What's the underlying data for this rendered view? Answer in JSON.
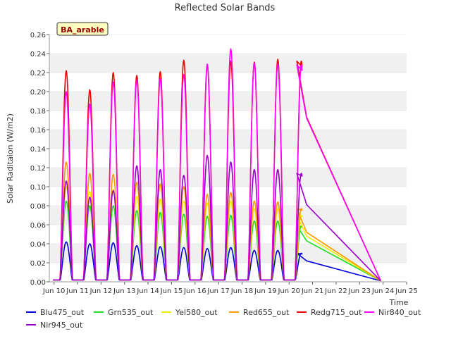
{
  "chart_data": {
    "type": "line",
    "title": "Reflected Solar Bands",
    "xlabel": "Time",
    "ylabel": "Solar Raditaion (W/m2)",
    "annotation": "BA_arable",
    "xlim": [
      9.8,
      25.0
    ],
    "ylim": [
      0.0,
      0.26
    ],
    "grid": true,
    "grid_style": "alternating horizontal bands",
    "legend_position": "bottom",
    "x_ticks": [
      {
        "value": 10,
        "label": "Jun 10"
      },
      {
        "value": 11,
        "label": "Jun 11"
      },
      {
        "value": 12,
        "label": "Jun 12"
      },
      {
        "value": 13,
        "label": "Jun 13"
      },
      {
        "value": 14,
        "label": "Jun 14"
      },
      {
        "value": 15,
        "label": "Jun 15"
      },
      {
        "value": 16,
        "label": "Jun 16"
      },
      {
        "value": 17,
        "label": "Jun 17"
      },
      {
        "value": 18,
        "label": "Jun 18"
      },
      {
        "value": 19,
        "label": "Jun 19"
      },
      {
        "value": 20,
        "label": "Jun 20"
      },
      {
        "value": 21,
        "label": "Jun 21"
      },
      {
        "value": 22,
        "label": "Jun 22"
      },
      {
        "value": 23,
        "label": "Jun 23"
      },
      {
        "value": 24,
        "label": "Jun 24"
      },
      {
        "value": 25,
        "label": "Jun 25"
      }
    ],
    "y_ticks": [
      {
        "value": 0.0,
        "label": "0.00"
      },
      {
        "value": 0.02,
        "label": "0.02"
      },
      {
        "value": 0.04,
        "label": "0.04"
      },
      {
        "value": 0.06,
        "label": "0.06"
      },
      {
        "value": 0.08,
        "label": "0.08"
      },
      {
        "value": 0.1,
        "label": "0.10"
      },
      {
        "value": 0.12,
        "label": "0.12"
      },
      {
        "value": 0.14,
        "label": "0.14"
      },
      {
        "value": 0.16,
        "label": "0.16"
      },
      {
        "value": 0.18,
        "label": "0.18"
      },
      {
        "value": 0.2,
        "label": "0.20"
      },
      {
        "value": 0.22,
        "label": "0.22"
      },
      {
        "value": 0.24,
        "label": "0.24"
      },
      {
        "value": 0.26,
        "label": "0.26"
      }
    ],
    "day_profile": {
      "start_day": 10,
      "days": 11,
      "sunrise_fraction": 0.25,
      "sunset_fraction": 0.79,
      "night_value": 0.002
    },
    "tail": {
      "x": [
        20.33,
        20.75,
        23.9
      ],
      "note": "last readings then straight line down to 23.9"
    },
    "series": [
      {
        "name": "Blu475_out",
        "color": "#0000dd",
        "daily_peaks": [
          0.042,
          0.04,
          0.041,
          0.038,
          0.037,
          0.036,
          0.035,
          0.036,
          0.033,
          0.033,
          0.03
        ],
        "tail_values": [
          0.03,
          0.022,
          0.001
        ]
      },
      {
        "name": "Grn535_out",
        "color": "#22dd22",
        "daily_peaks": [
          0.085,
          0.08,
          0.08,
          0.075,
          0.073,
          0.071,
          0.069,
          0.07,
          0.064,
          0.064,
          0.059
        ],
        "tail_values": [
          0.059,
          0.043,
          0.001
        ]
      },
      {
        "name": "Yel580_out",
        "color": "#eeee00",
        "daily_peaks": [
          0.1,
          0.095,
          0.097,
          0.09,
          0.087,
          0.085,
          0.083,
          0.085,
          0.077,
          0.077,
          0.07
        ],
        "tail_values": [
          0.07,
          0.048,
          0.001
        ]
      },
      {
        "name": "Red655_out",
        "color": "#ff9900",
        "daily_peaks": [
          0.126,
          0.114,
          0.113,
          0.105,
          0.103,
          0.1,
          0.092,
          0.094,
          0.085,
          0.084,
          0.077
        ],
        "tail_values": [
          0.077,
          0.052,
          0.001
        ]
      },
      {
        "name": "Redg715_out",
        "color": "#ee0000",
        "daily_peaks": [
          0.222,
          0.202,
          0.22,
          0.217,
          0.221,
          0.233,
          0.228,
          0.232,
          0.231,
          0.234,
          0.232
        ],
        "tail_values": [
          0.232,
          0.173,
          0.001
        ]
      },
      {
        "name": "Nir840_out",
        "color": "#ff00ff",
        "daily_peaks": [
          0.2,
          0.187,
          0.21,
          0.212,
          0.214,
          0.218,
          0.229,
          0.245,
          0.23,
          0.229,
          0.228
        ],
        "tail_values": [
          0.228,
          0.172,
          0.001
        ]
      },
      {
        "name": "Nir945_out",
        "color": "#9900cc",
        "daily_peaks": [
          0.106,
          0.089,
          0.096,
          0.122,
          0.118,
          0.112,
          0.133,
          0.126,
          0.118,
          0.118,
          0.114
        ],
        "tail_values": [
          0.114,
          0.081,
          0.001
        ]
      }
    ]
  }
}
